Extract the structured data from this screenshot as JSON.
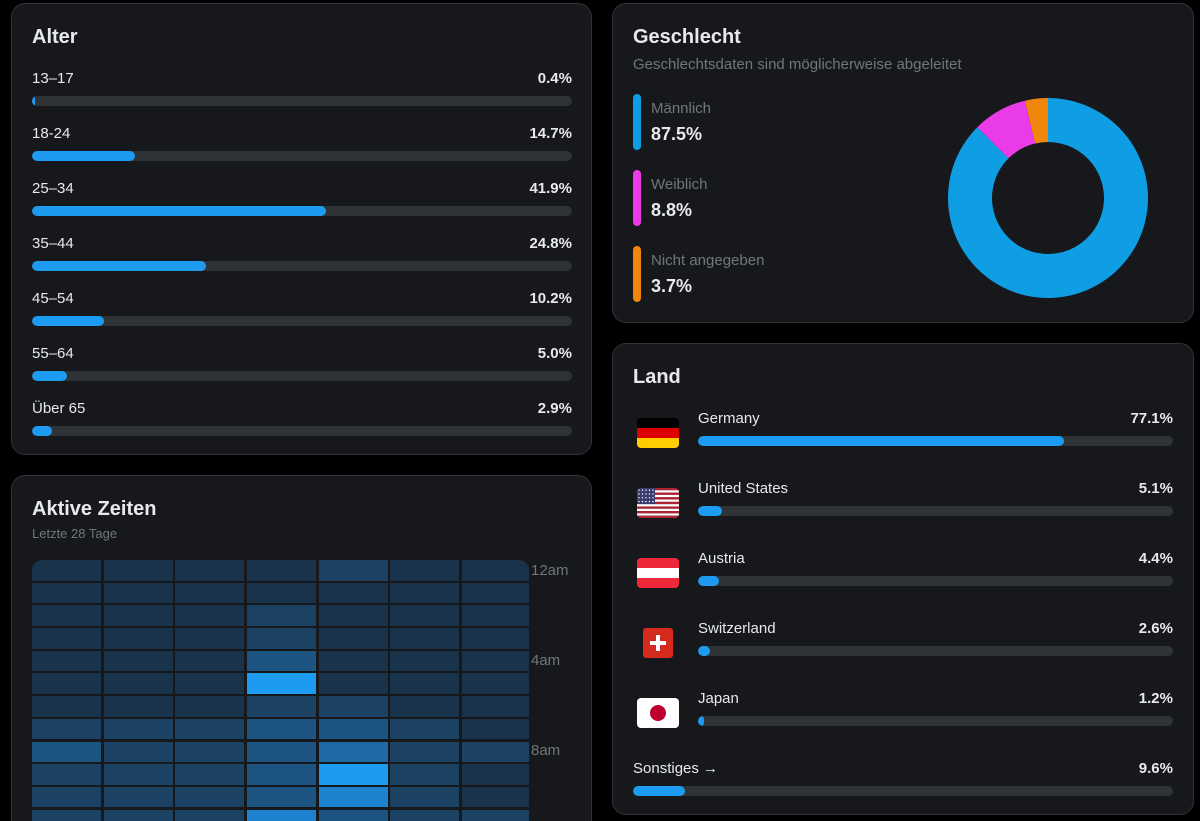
{
  "age": {
    "title": "Alter",
    "rows": [
      {
        "label": "13–17",
        "value": "0.4%",
        "pct": 0.4
      },
      {
        "label": "18-24",
        "value": "14.7%",
        "pct": 14.7
      },
      {
        "label": "25–34",
        "value": "41.9%",
        "pct": 41.9
      },
      {
        "label": "35–44",
        "value": "24.8%",
        "pct": 24.8
      },
      {
        "label": "45–54",
        "value": "10.2%",
        "pct": 10.2
      },
      {
        "label": "55–64",
        "value": "5.0%",
        "pct": 5.0
      },
      {
        "label": "Über 65",
        "value": "2.9%",
        "pct": 2.9
      }
    ]
  },
  "active_times": {
    "title": "Aktive Zeiten",
    "subtitle": "Letzte 28 Tage",
    "hour_labels": [
      "12am",
      "4am",
      "8am"
    ],
    "heatmap": [
      [
        1,
        1,
        1,
        1,
        2,
        1,
        1
      ],
      [
        1,
        1,
        1,
        1,
        1,
        1,
        1
      ],
      [
        1,
        1,
        1,
        2,
        1,
        1,
        1
      ],
      [
        1,
        1,
        1,
        2,
        1,
        1,
        1
      ],
      [
        1,
        1,
        1,
        3,
        1,
        1,
        1
      ],
      [
        1,
        1,
        1,
        6,
        1,
        1,
        1
      ],
      [
        1,
        1,
        1,
        2,
        2,
        1,
        1
      ],
      [
        2,
        2,
        2,
        3,
        3,
        2,
        1
      ],
      [
        3,
        2,
        2,
        3,
        4,
        2,
        2
      ],
      [
        2,
        2,
        2,
        3,
        6,
        2,
        1
      ],
      [
        2,
        2,
        2,
        3,
        5,
        2,
        1
      ],
      [
        2,
        2,
        2,
        5,
        3,
        2,
        2
      ]
    ],
    "heat_colors": [
      "#1a2a3a",
      "#19334a",
      "#1b4263",
      "#1d5582",
      "#1f6aa6",
      "#1d83cf",
      "#1d9bf0"
    ]
  },
  "gender": {
    "title": "Geschlecht",
    "subtitle": "Geschlechtsdaten sind möglicherweise abgeleitet",
    "items": [
      {
        "label": "Männlich",
        "value": "87.5%",
        "pct": 87.5,
        "color": "#0f9de4"
      },
      {
        "label": "Weiblich",
        "value": "8.8%",
        "pct": 8.8,
        "color": "#e93ce8"
      },
      {
        "label": "Nicht angegeben",
        "value": "3.7%",
        "pct": 3.7,
        "color": "#f0870c"
      }
    ]
  },
  "country": {
    "title": "Land",
    "rows": [
      {
        "name": "Germany",
        "value": "77.1%",
        "pct": 77.1,
        "flag": "germany-flag-icon"
      },
      {
        "name": "United States",
        "value": "5.1%",
        "pct": 5.1,
        "flag": "usa-flag-icon"
      },
      {
        "name": "Austria",
        "value": "4.4%",
        "pct": 4.4,
        "flag": "austria-flag-icon"
      },
      {
        "name": "Switzerland",
        "value": "2.6%",
        "pct": 2.6,
        "flag": "switzerland-flag-icon"
      },
      {
        "name": "Japan",
        "value": "1.2%",
        "pct": 1.2,
        "flag": "japan-flag-icon"
      }
    ],
    "other": {
      "label": "Sonstiges →",
      "value": "9.6%",
      "pct": 9.6
    }
  },
  "colors": {
    "accent": "#1d9bf0",
    "card_bg": "#16181c",
    "track": "#2f3336"
  }
}
